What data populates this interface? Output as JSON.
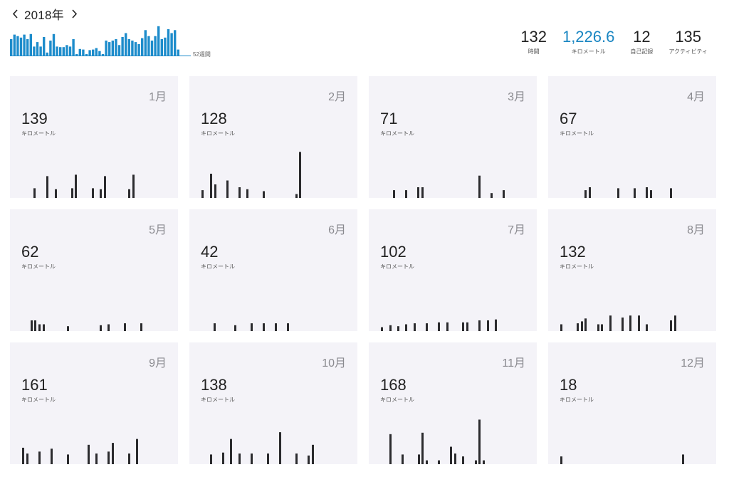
{
  "nav": {
    "prev_icon": "chevron-left-icon",
    "next_icon": "chevron-right-icon",
    "year": "2018年"
  },
  "weekly": {
    "weeks_label": "52週間",
    "accent": "#1d8ccb",
    "values": [
      0.55,
      0.7,
      0.65,
      0.6,
      0.7,
      0.55,
      0.72,
      0.3,
      0.45,
      0.3,
      0.62,
      0.1,
      0.5,
      0.72,
      0.3,
      0.28,
      0.28,
      0.35,
      0.3,
      0.55,
      0.05,
      0.22,
      0.2,
      0.05,
      0.18,
      0.2,
      0.25,
      0.15,
      0.05,
      0.5,
      0.45,
      0.5,
      0.55,
      0.35,
      0.62,
      0.75,
      0.55,
      0.5,
      0.45,
      0.38,
      0.58,
      0.85,
      0.65,
      0.5,
      0.65,
      0.98,
      0.55,
      0.6,
      0.88,
      0.75,
      0.85,
      0.2
    ]
  },
  "summary": [
    {
      "value": "132",
      "label": "時間"
    },
    {
      "value": "1,226.6",
      "label": "キロメートル"
    },
    {
      "value": "12",
      "label": "自己記録"
    },
    {
      "value": "135",
      "label": "アクティビティ"
    }
  ],
  "months": [
    {
      "name": "1月",
      "km": "139",
      "unit": "キロメートル",
      "bars": [
        [
          33,
          0.2
        ],
        [
          51,
          0.45
        ],
        [
          63,
          0.18
        ],
        [
          86,
          0.2
        ],
        [
          91,
          0.48
        ],
        [
          115,
          0.2
        ],
        [
          126,
          0.18
        ],
        [
          132,
          0.45
        ],
        [
          166,
          0.18
        ],
        [
          172,
          0.48
        ]
      ]
    },
    {
      "name": "2月",
      "km": "128",
      "unit": "キロメートル",
      "bars": [
        [
          17,
          0.16
        ],
        [
          29,
          0.5
        ],
        [
          35,
          0.28
        ],
        [
          52,
          0.36
        ],
        [
          69,
          0.22
        ],
        [
          80,
          0.18
        ],
        [
          103,
          0.14
        ],
        [
          149,
          0.08
        ],
        [
          154,
          0.95
        ]
      ]
    },
    {
      "name": "3月",
      "km": "71",
      "unit": "キロメートル",
      "bars": [
        [
          34,
          0.16
        ],
        [
          51,
          0.16
        ],
        [
          68,
          0.22
        ],
        [
          74,
          0.22
        ],
        [
          154,
          0.46
        ],
        [
          171,
          0.1
        ],
        [
          188,
          0.16
        ]
      ]
    },
    {
      "name": "4月",
      "km": "67",
      "unit": "キロメートル",
      "bars": [
        [
          51,
          0.16
        ],
        [
          57,
          0.22
        ],
        [
          97,
          0.2
        ],
        [
          120,
          0.2
        ],
        [
          137,
          0.22
        ],
        [
          143,
          0.16
        ],
        [
          171,
          0.2
        ]
      ]
    },
    {
      "name": "5月",
      "km": "62",
      "unit": "キロメートル",
      "bars": [
        [
          29,
          0.22
        ],
        [
          34,
          0.22
        ],
        [
          40,
          0.14
        ],
        [
          46,
          0.14
        ],
        [
          80,
          0.1
        ],
        [
          126,
          0.12
        ],
        [
          137,
          0.14
        ],
        [
          160,
          0.16
        ],
        [
          183,
          0.16
        ]
      ]
    },
    {
      "name": "6月",
      "km": "42",
      "unit": "キロメートル",
      "bars": [
        [
          34,
          0.16
        ],
        [
          63,
          0.12
        ],
        [
          86,
          0.16
        ],
        [
          103,
          0.16
        ],
        [
          120,
          0.16
        ],
        [
          137,
          0.16
        ]
      ]
    },
    {
      "name": "7月",
      "km": "102",
      "unit": "キロメートル",
      "bars": [
        [
          17,
          0.08
        ],
        [
          29,
          0.12
        ],
        [
          40,
          0.1
        ],
        [
          51,
          0.14
        ],
        [
          63,
          0.16
        ],
        [
          80,
          0.16
        ],
        [
          97,
          0.18
        ],
        [
          109,
          0.18
        ],
        [
          131,
          0.18
        ],
        [
          137,
          0.18
        ],
        [
          154,
          0.22
        ],
        [
          166,
          0.22
        ],
        [
          177,
          0.24
        ]
      ]
    },
    {
      "name": "8月",
      "km": "132",
      "unit": "キロメートル",
      "bars": [
        [
          17,
          0.14
        ],
        [
          40,
          0.16
        ],
        [
          46,
          0.2
        ],
        [
          51,
          0.26
        ],
        [
          69,
          0.14
        ],
        [
          74,
          0.14
        ],
        [
          86,
          0.32
        ],
        [
          103,
          0.28
        ],
        [
          114,
          0.32
        ],
        [
          126,
          0.32
        ],
        [
          137,
          0.14
        ],
        [
          171,
          0.22
        ],
        [
          177,
          0.32
        ]
      ]
    },
    {
      "name": "9月",
      "km": "161",
      "unit": "キロメートル",
      "bars": [
        [
          17,
          0.34
        ],
        [
          23,
          0.22
        ],
        [
          40,
          0.26
        ],
        [
          57,
          0.32
        ],
        [
          80,
          0.2
        ],
        [
          109,
          0.4
        ],
        [
          120,
          0.22
        ],
        [
          137,
          0.26
        ],
        [
          143,
          0.44
        ],
        [
          166,
          0.22
        ],
        [
          177,
          0.52
        ]
      ]
    },
    {
      "name": "10月",
      "km": "138",
      "unit": "キロメートル",
      "bars": [
        [
          29,
          0.2
        ],
        [
          46,
          0.24
        ],
        [
          57,
          0.52
        ],
        [
          69,
          0.22
        ],
        [
          86,
          0.22
        ],
        [
          109,
          0.22
        ],
        [
          126,
          0.66
        ],
        [
          149,
          0.22
        ],
        [
          166,
          0.18
        ],
        [
          172,
          0.4
        ]
      ]
    },
    {
      "name": "11月",
      "km": "168",
      "unit": "キロメートル",
      "bars": [
        [
          29,
          0.62
        ],
        [
          46,
          0.2
        ],
        [
          69,
          0.2
        ],
        [
          74,
          0.65
        ],
        [
          80,
          0.08
        ],
        [
          97,
          0.08
        ],
        [
          114,
          0.36
        ],
        [
          120,
          0.22
        ],
        [
          131,
          0.16
        ],
        [
          149,
          0.08
        ],
        [
          154,
          0.92
        ],
        [
          160,
          0.08
        ]
      ]
    },
    {
      "name": "12月",
      "km": "18",
      "unit": "キロメートル",
      "bars": [
        [
          17,
          0.16
        ],
        [
          188,
          0.2
        ]
      ]
    }
  ]
}
